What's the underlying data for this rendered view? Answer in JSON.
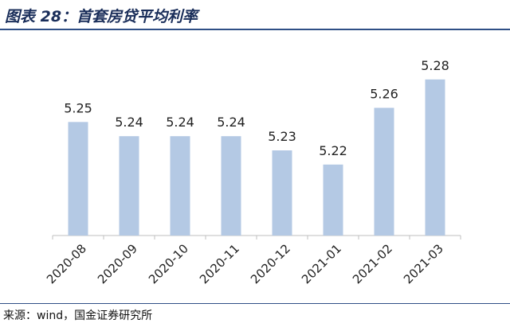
{
  "chart_data": {
    "type": "bar",
    "title": "图表 28：首套房贷平均利率",
    "categories": [
      "2020-08",
      "2020-09",
      "2020-10",
      "2020-11",
      "2020-12",
      "2021-01",
      "2021-02",
      "2021-03"
    ],
    "values": [
      5.25,
      5.24,
      5.24,
      5.24,
      5.23,
      5.22,
      5.26,
      5.28
    ],
    "data_labels": [
      "5.25",
      "5.24",
      "5.24",
      "5.24",
      "5.23",
      "5.22",
      "5.26",
      "5.28"
    ],
    "xlabel": "",
    "ylabel": "",
    "ylim": [
      5.17,
      5.29
    ],
    "grid": false,
    "legend": "none",
    "bar_color": "#b4c9e4",
    "axis_color": "#bfbfbf"
  },
  "footer": {
    "source": "来源：wind，国金证券研究所"
  },
  "colors": {
    "title": "#1a2e5a",
    "rule": "#2f4f86"
  }
}
